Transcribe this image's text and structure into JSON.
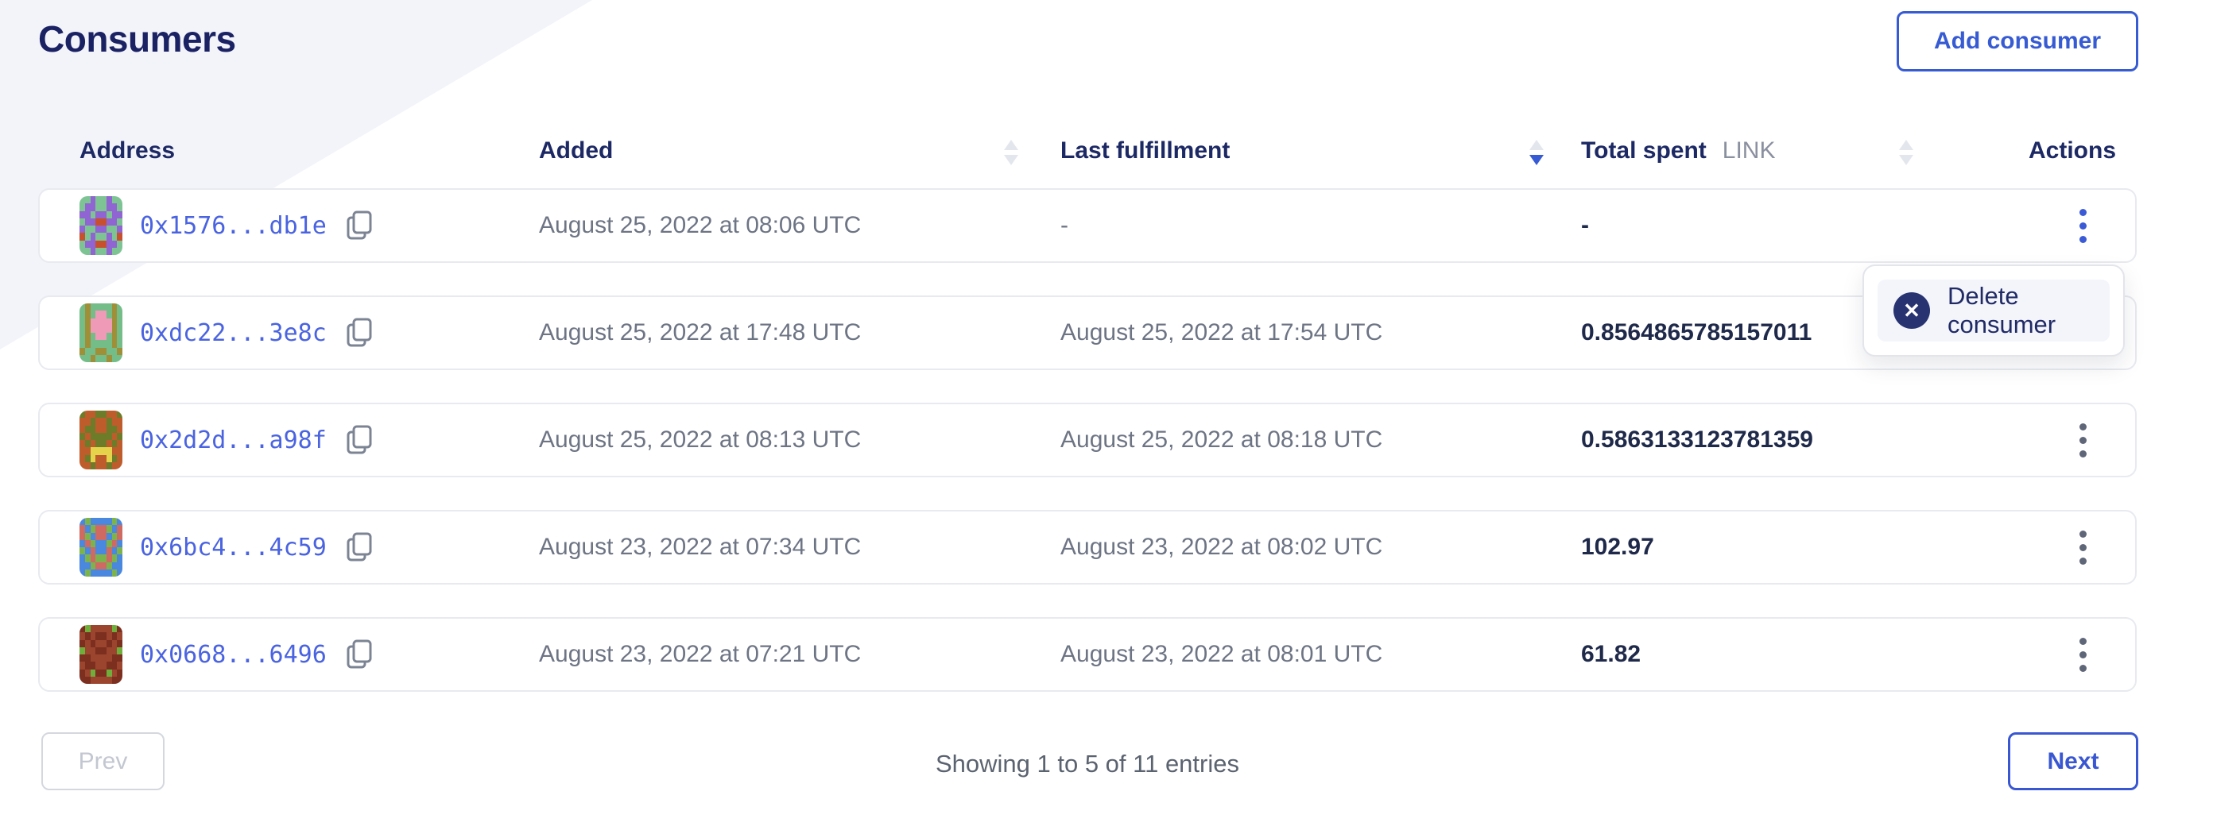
{
  "page": {
    "title": "Consumers"
  },
  "toolbar": {
    "add_consumer_label": "Add consumer"
  },
  "table": {
    "columns": [
      {
        "id": "address",
        "label": "Address",
        "sortable": false
      },
      {
        "id": "added",
        "label": "Added",
        "sortable": true,
        "sort": "none"
      },
      {
        "id": "last_fulfillment",
        "label": "Last fulfillment",
        "sortable": true,
        "sort": "desc"
      },
      {
        "id": "total_spent",
        "label": "Total spent",
        "unit": "LINK",
        "sortable": true,
        "sort": "none"
      },
      {
        "id": "actions",
        "label": "Actions",
        "sortable": false
      }
    ],
    "rows": [
      {
        "address_short": "0x1576...db1e",
        "added": "August 25, 2022 at 08:06 UTC",
        "last_fulfillment": "-",
        "total_spent": "-",
        "menu_open": true,
        "identicon": {
          "palette": {
            "G": "#7ec393",
            "P": "#9064d2",
            "R": "#c7502f"
          },
          "rows": [
            "GGPGGPGG",
            "GPPGGPPG",
            "PPGPPGPP",
            "GPPRRPPG",
            "PGGPPGGP",
            "RGPGGPGR",
            "GPPRRPPG",
            "GGPGGPGG"
          ]
        }
      },
      {
        "address_short": "0xdc22...3e8c",
        "added": "August 25, 2022 at 17:48 UTC",
        "last_fulfillment": "August 25, 2022 at 17:54 UTC",
        "total_spent": "0.8564865785157011",
        "menu_open": false,
        "identicon": {
          "palette": {
            "G": "#74bd88",
            "O": "#a08f39",
            "K": "#ef9ab6"
          },
          "rows": [
            "GOGGGGOG",
            "GOGKKGOG",
            "GOKKKKOG",
            "GOKKKKOG",
            "GOGKKGOG",
            "GOGGGGOG",
            "OGGOOGGO",
            "GGOGGOGG"
          ]
        }
      },
      {
        "address_short": "0x2d2d...a98f",
        "added": "August 25, 2022 at 08:13 UTC",
        "last_fulfillment": "August 25, 2022 at 08:18 UTC",
        "total_spent": "0.5863133123781359",
        "menu_open": false,
        "identicon": {
          "palette": {
            "T": "#bf5c2c",
            "N": "#6d7c28",
            "Y": "#e5d34b"
          },
          "rows": [
            "NTTNNTTN",
            "TTNTTNTT",
            "TNNTTNNT",
            "NTNNNNTN",
            "TNTNNTNT",
            "TTYYYYTT",
            "TNYTTYNT",
            "TTNTTNTT"
          ]
        }
      },
      {
        "address_short": "0x6bc4...4c59",
        "added": "August 23, 2022 at 07:34 UTC",
        "last_fulfillment": "August 23, 2022 at 08:02 UTC",
        "total_spent": "102.97",
        "menu_open": false,
        "identicon": {
          "palette": {
            "B": "#4a87df",
            "R": "#cf6a63",
            "N": "#7cb34c"
          },
          "rows": [
            "BNBBBBNB",
            "RBNRRNBR",
            "RNBRRBNR",
            "BRNBBNRB",
            "NBRBBRBN",
            "BNRNNRNB",
            "BBNRRNBB",
            "BNBBBBNB"
          ]
        }
      },
      {
        "address_short": "0x0668...6496",
        "added": "August 23, 2022 at 07:21 UTC",
        "last_fulfillment": "August 23, 2022 at 08:01 UTC",
        "total_spent": "61.82",
        "menu_open": false,
        "identicon": {
          "palette": {
            "D": "#7c2e1f",
            "M": "#9c452e",
            "N": "#6fae3a"
          },
          "rows": [
            "DNMMMMND",
            "MDMDDMDM",
            "DMDMMDMD",
            "NMMDDMMN",
            "DDMMMMDD",
            "MDDMMDDM",
            "DMNDDNMD",
            "DDMMMMDD"
          ]
        }
      }
    ]
  },
  "action_menu": {
    "items": [
      {
        "label": "Delete consumer",
        "icon": "x-circle-icon",
        "icon_glyph": "✕"
      }
    ]
  },
  "pagination": {
    "prev_label": "Prev",
    "next_label": "Next",
    "status": "Showing 1 to 5 of 11 entries"
  },
  "colors": {
    "brand_blue": "#375bd2",
    "link_blue": "#4a63e0",
    "navy_heading": "#1b2264",
    "muted_text": "#6d7484",
    "value_text": "#1f2a4a",
    "card_border": "#e8eaef",
    "accent_background": "#f3f4f9",
    "menu_item_background": "#f3f5fa",
    "delete_icon_background": "#283371"
  }
}
